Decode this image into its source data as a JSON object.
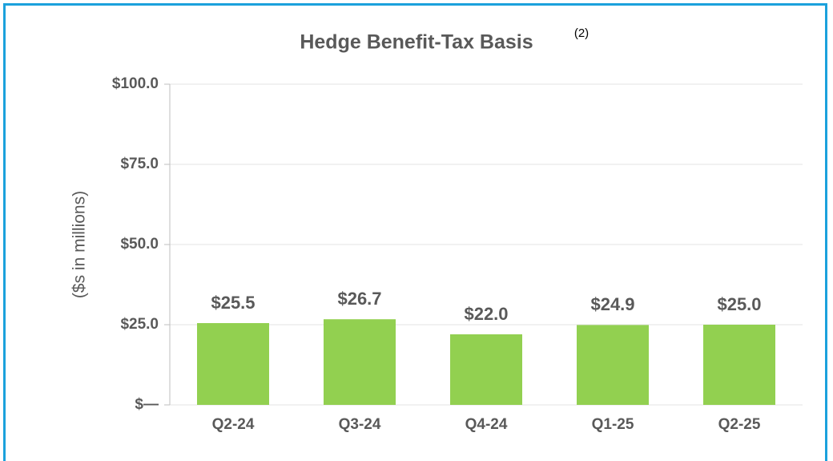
{
  "chart_data": {
    "type": "bar",
    "title": "Hedge Benefit-Tax Basis",
    "title_note": "(2)",
    "y_label": "($s in millions)",
    "categories": [
      "Q2-24",
      "Q3-24",
      "Q4-24",
      "Q1-25",
      "Q2-25"
    ],
    "values": [
      25.5,
      26.7,
      22.0,
      24.9,
      25.0
    ],
    "value_labels": [
      "$25.5",
      "$26.7",
      "$22.0",
      "$24.9",
      "$25.0"
    ],
    "color": "#92d050",
    "ylim": [
      0,
      100
    ],
    "yticks": [
      {
        "value": 0,
        "label": "$—"
      },
      {
        "value": 25,
        "label": "$25.0"
      },
      {
        "value": 50,
        "label": "$50.0"
      },
      {
        "value": 75,
        "label": "$75.0"
      },
      {
        "value": 100,
        "label": "$100.0"
      }
    ],
    "grid": true
  }
}
